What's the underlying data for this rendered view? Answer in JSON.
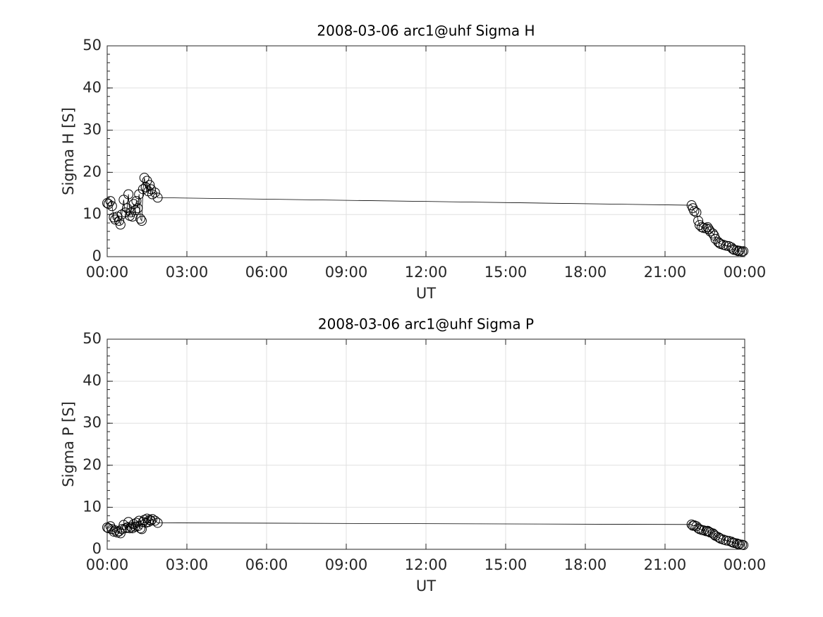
{
  "chart_data": [
    {
      "type": "line",
      "title": "2008-03-06  arc1@uhf Sigma H",
      "xlabel": "UT",
      "ylabel": "Sigma H [S]",
      "x": [
        0.0,
        0.05,
        0.12,
        0.18,
        0.25,
        0.3,
        0.38,
        0.45,
        0.5,
        0.55,
        0.62,
        0.68,
        0.75,
        0.8,
        0.85,
        0.9,
        0.95,
        1.0,
        1.05,
        1.1,
        1.15,
        1.2,
        1.25,
        1.3,
        1.35,
        1.4,
        1.45,
        1.5,
        1.55,
        1.6,
        1.65,
        1.7,
        1.8,
        1.9,
        22.0,
        22.05,
        22.1,
        22.18,
        22.25,
        22.3,
        22.38,
        22.45,
        22.55,
        22.6,
        22.65,
        22.7,
        22.8,
        22.85,
        22.9,
        23.0,
        23.05,
        23.1,
        23.2,
        23.3,
        23.4,
        23.5,
        23.55,
        23.6,
        23.7,
        23.75,
        23.8,
        23.9,
        23.95
      ],
      "values": [
        12.7,
        12.5,
        13.2,
        12,
        9.3,
        8.8,
        9.5,
        8.5,
        7.6,
        10,
        13.5,
        10.5,
        11.5,
        14.8,
        9.7,
        10.5,
        9.5,
        12.5,
        11,
        13.2,
        11.5,
        14.8,
        9,
        8.5,
        16,
        18.7,
        16.5,
        18,
        15.5,
        17,
        16,
        14.8,
        15.2,
        14,
        12.2,
        11.5,
        10.8,
        10.5,
        8.5,
        7.5,
        7,
        6.8,
        6.7,
        7,
        6.5,
        6,
        5.5,
        5,
        4.2,
        3.5,
        3.2,
        3,
        2.8,
        2.6,
        2.5,
        2.2,
        1.8,
        1.6,
        1.5,
        1.3,
        1.4,
        1.2,
        1.3
      ],
      "color": "#000000",
      "marker": "circle",
      "grid": true,
      "xlim": [
        0,
        24
      ],
      "ylim": [
        0,
        50
      ],
      "xticks": [
        {
          "value": 0,
          "label": "00:00"
        },
        {
          "value": 3,
          "label": "03:00"
        },
        {
          "value": 6,
          "label": "06:00"
        },
        {
          "value": 9,
          "label": "09:00"
        },
        {
          "value": 12,
          "label": "12:00"
        },
        {
          "value": 15,
          "label": "15:00"
        },
        {
          "value": 18,
          "label": "18:00"
        },
        {
          "value": 21,
          "label": "21:00"
        },
        {
          "value": 24,
          "label": "00:00"
        }
      ],
      "yticks": [
        0,
        10,
        20,
        30,
        40,
        50
      ]
    },
    {
      "type": "line",
      "title": "2008-03-06  arc1@uhf Sigma P",
      "xlabel": "UT",
      "ylabel": "Sigma P [S]",
      "x": [
        0.0,
        0.05,
        0.12,
        0.18,
        0.25,
        0.3,
        0.38,
        0.45,
        0.5,
        0.55,
        0.62,
        0.68,
        0.75,
        0.8,
        0.85,
        0.9,
        0.95,
        1.0,
        1.05,
        1.1,
        1.15,
        1.2,
        1.25,
        1.3,
        1.35,
        1.4,
        1.45,
        1.5,
        1.55,
        1.6,
        1.65,
        1.7,
        1.8,
        1.9,
        22.0,
        22.05,
        22.1,
        22.18,
        22.25,
        22.3,
        22.38,
        22.45,
        22.55,
        22.6,
        22.65,
        22.7,
        22.8,
        22.85,
        22.9,
        23.0,
        23.05,
        23.1,
        23.2,
        23.3,
        23.4,
        23.5,
        23.55,
        23.6,
        23.7,
        23.75,
        23.8,
        23.9,
        23.95
      ],
      "values": [
        5.2,
        5,
        5.5,
        4.8,
        4.2,
        4.5,
        4,
        4.3,
        3.8,
        4.8,
        5.8,
        5,
        5.2,
        6.5,
        5,
        5.3,
        5,
        6,
        5.4,
        6.3,
        5.5,
        6.8,
        5,
        4.8,
        6.5,
        7,
        6.3,
        7.3,
        6.5,
        7,
        6.8,
        7.2,
        6.8,
        6.3,
        5.9,
        5.6,
        5.7,
        5.5,
        5,
        4.8,
        4.6,
        4.5,
        4.3,
        4.4,
        4.2,
        4,
        3.8,
        3.5,
        3.2,
        2.9,
        2.7,
        2.5,
        2.3,
        2.1,
        2,
        1.8,
        1.6,
        1.5,
        1.4,
        1.2,
        1.2,
        1.1,
        1.0
      ],
      "color": "#000000",
      "marker": "circle",
      "grid": true,
      "xlim": [
        0,
        24
      ],
      "ylim": [
        0,
        50
      ],
      "xticks": [
        {
          "value": 0,
          "label": "00:00"
        },
        {
          "value": 3,
          "label": "03:00"
        },
        {
          "value": 6,
          "label": "06:00"
        },
        {
          "value": 9,
          "label": "09:00"
        },
        {
          "value": 12,
          "label": "12:00"
        },
        {
          "value": 15,
          "label": "15:00"
        },
        {
          "value": 18,
          "label": "18:00"
        },
        {
          "value": 21,
          "label": "21:00"
        },
        {
          "value": 24,
          "label": "00:00"
        }
      ],
      "yticks": [
        0,
        10,
        20,
        30,
        40,
        50
      ]
    }
  ]
}
